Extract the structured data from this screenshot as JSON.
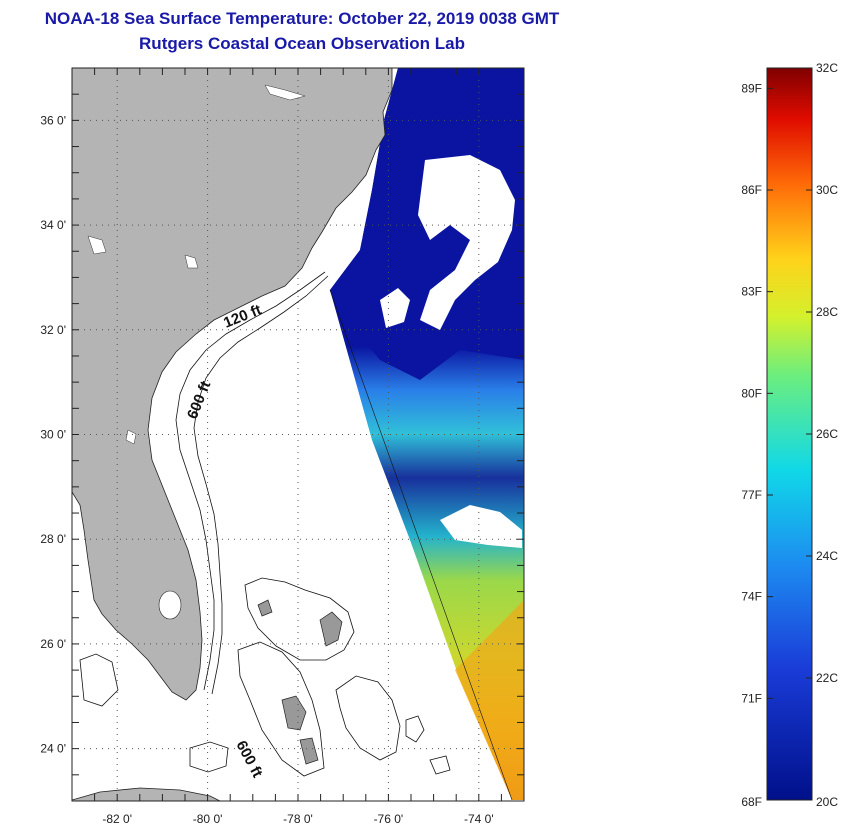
{
  "title": "NOAA-18 Sea Surface Temperature:  October 22, 2019 0038 GMT",
  "subtitle": "Rutgers Coastal Ocean Observation Lab",
  "map": {
    "lon_range": [
      -83,
      -73
    ],
    "lat_range": [
      23,
      37
    ],
    "lon_ticks": [
      {
        "value": -82,
        "label": "-82 0'"
      },
      {
        "value": -80,
        "label": "-80 0'"
      },
      {
        "value": -78,
        "label": "-78 0'"
      },
      {
        "value": -76,
        "label": "-76 0'"
      },
      {
        "value": -74,
        "label": "-74 0'"
      }
    ],
    "lat_ticks": [
      {
        "value": 36,
        "label": "36 0'"
      },
      {
        "value": 34,
        "label": "34 0'"
      },
      {
        "value": 32,
        "label": "32 0'"
      },
      {
        "value": 30,
        "label": "30 0'"
      },
      {
        "value": 28,
        "label": "28 0'"
      },
      {
        "value": 26,
        "label": "26 0'"
      },
      {
        "value": 24,
        "label": "24 0'"
      }
    ],
    "contour_labels": [
      "120 ft",
      "600 ft",
      "600 ft"
    ],
    "colors": {
      "land": "#b4b4b4",
      "cloud": "#ffffff",
      "cold_water": "#0a14a0"
    }
  },
  "colorbar": {
    "celsius_labels": [
      "32C",
      "30C",
      "28C",
      "26C",
      "24C",
      "22C",
      "20C"
    ],
    "fahrenheit_labels": [
      "89F",
      "86F",
      "83F",
      "80F",
      "77F",
      "74F",
      "71F",
      "68F"
    ],
    "celsius_range": [
      20,
      32
    ]
  }
}
